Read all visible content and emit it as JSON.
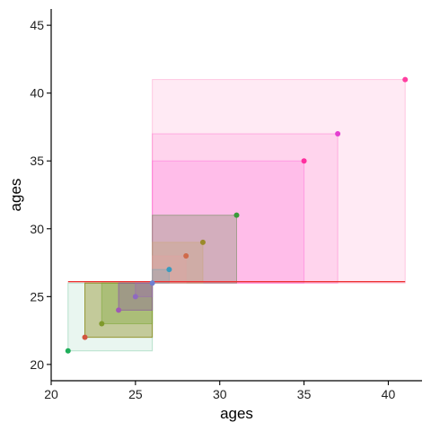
{
  "chart_data": {
    "type": "scatter",
    "title": "",
    "xlabel": "ages",
    "ylabel": "ages",
    "xlim": [
      20,
      42
    ],
    "ylim": [
      18.8,
      46.2
    ],
    "xticks": [
      20,
      25,
      30,
      35,
      40
    ],
    "yticks": [
      20,
      25,
      30,
      35,
      40,
      45
    ],
    "grid": false,
    "legend": "none",
    "reference": {
      "from": [
        21,
        26.1
      ],
      "to": [
        41,
        26.1
      ],
      "color": "#ee3333"
    },
    "rects": [
      {
        "x0": 26,
        "x1": 41,
        "y0": 26,
        "y1": 41,
        "color": "#ff5fa8",
        "fill_opacity": 0.13,
        "stroke_opacity": 0.3
      },
      {
        "x0": 26,
        "x1": 37,
        "y0": 26,
        "y1": 37,
        "color": "#ff4fc3",
        "fill_opacity": 0.14,
        "stroke_opacity": 0.35
      },
      {
        "x0": 26,
        "x1": 35,
        "y0": 26,
        "y1": 35,
        "color": "#ff5ad7",
        "fill_opacity": 0.18,
        "stroke_opacity": 0.4
      },
      {
        "x0": 26,
        "x1": 31,
        "y0": 26,
        "y1": 31,
        "color": "#6d8a5a",
        "fill_opacity": 0.3,
        "stroke_opacity": 0.55
      },
      {
        "x0": 26,
        "x1": 29,
        "y0": 26,
        "y1": 29,
        "color": "#c9a87a",
        "fill_opacity": 0.35,
        "stroke_opacity": 0.5
      },
      {
        "x0": 26,
        "x1": 28,
        "y0": 26,
        "y1": 28,
        "color": "#e0a2a0",
        "fill_opacity": 0.35,
        "stroke_opacity": 0.5
      },
      {
        "x0": 26,
        "x1": 27,
        "y0": 26,
        "y1": 27,
        "color": "#7aa5b8",
        "fill_opacity": 0.3,
        "stroke_opacity": 0.5
      },
      {
        "x0": 21,
        "x1": 26,
        "y0": 21,
        "y1": 26,
        "color": "#2ca86a",
        "fill_opacity": 0.1,
        "stroke_opacity": 0.3
      },
      {
        "x0": 22,
        "x1": 26,
        "y0": 22,
        "y1": 26,
        "color": "#8a8a1a",
        "fill_opacity": 0.4,
        "stroke_opacity": 0.85
      },
      {
        "x0": 23,
        "x1": 26,
        "y0": 23,
        "y1": 26,
        "color": "#7fa83a",
        "fill_opacity": 0.35,
        "stroke_opacity": 0.6
      },
      {
        "x0": 24,
        "x1": 26,
        "y0": 24,
        "y1": 26,
        "color": "#8a5aa0",
        "fill_opacity": 0.35,
        "stroke_opacity": 0.7
      },
      {
        "x0": 25,
        "x1": 26,
        "y0": 25,
        "y1": 26,
        "color": "#9a6ab0",
        "fill_opacity": 0.3,
        "stroke_opacity": 0.6
      }
    ],
    "points": [
      {
        "x": 21,
        "y": 21,
        "color": "#1fae5a"
      },
      {
        "x": 22,
        "y": 22,
        "color": "#d2553f"
      },
      {
        "x": 23,
        "y": 23,
        "color": "#7f9a2a"
      },
      {
        "x": 24,
        "y": 24,
        "color": "#9f5ab5"
      },
      {
        "x": 25,
        "y": 25,
        "color": "#8f6ac0"
      },
      {
        "x": 26,
        "y": 26,
        "color": "#6f7fd0"
      },
      {
        "x": 27,
        "y": 27,
        "color": "#3a9bbf"
      },
      {
        "x": 28,
        "y": 28,
        "color": "#cf6a4a"
      },
      {
        "x": 29,
        "y": 29,
        "color": "#9a8a2a"
      },
      {
        "x": 31,
        "y": 31,
        "color": "#3a9a3a"
      },
      {
        "x": 35,
        "y": 35,
        "color": "#ff2f9f"
      },
      {
        "x": 37,
        "y": 37,
        "color": "#e43fd0"
      },
      {
        "x": 41,
        "y": 41,
        "color": "#ff3fa0"
      }
    ]
  }
}
